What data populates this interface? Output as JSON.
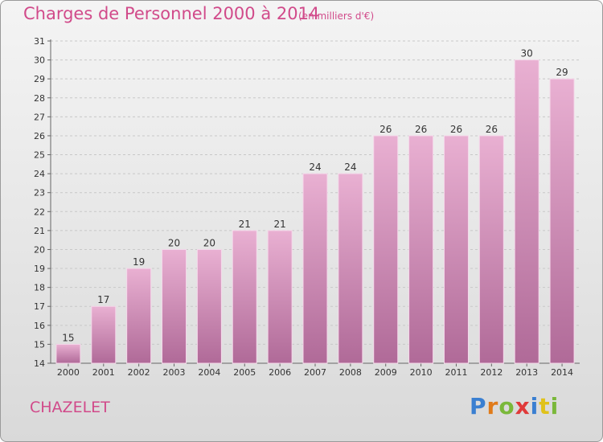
{
  "header": {
    "title": "Charges de Personnel 2000 à 2014",
    "subtitle": "(en milliers d'€)"
  },
  "footer": {
    "commune": "CHAZELET",
    "logo_text": "Proxiti",
    "logo_colors": [
      "#3a7fd1",
      "#e07b1a",
      "#7ab83a",
      "#e03a3a",
      "#3a7fd1",
      "#e0c21a",
      "#7ab83a"
    ]
  },
  "colors": {
    "bar_top": "#e9b0d2",
    "bar_bottom": "#b06a98",
    "text_accent": "#d14a8a"
  },
  "chart_data": {
    "type": "bar",
    "title": "Charges de Personnel 2000 à 2014",
    "subtitle": "(en milliers d'€)",
    "xlabel": "",
    "ylabel": "",
    "categories": [
      "2000",
      "2001",
      "2002",
      "2003",
      "2004",
      "2005",
      "2006",
      "2007",
      "2008",
      "2009",
      "2010",
      "2011",
      "2012",
      "2013",
      "2014"
    ],
    "values": [
      15,
      17,
      19,
      20,
      20,
      21,
      21,
      24,
      24,
      26,
      26,
      26,
      26,
      30,
      29
    ],
    "ylim": [
      14,
      31
    ],
    "yticks": [
      14,
      15,
      16,
      17,
      18,
      19,
      20,
      21,
      22,
      23,
      24,
      25,
      26,
      27,
      28,
      29,
      30,
      31
    ],
    "grid": true
  }
}
